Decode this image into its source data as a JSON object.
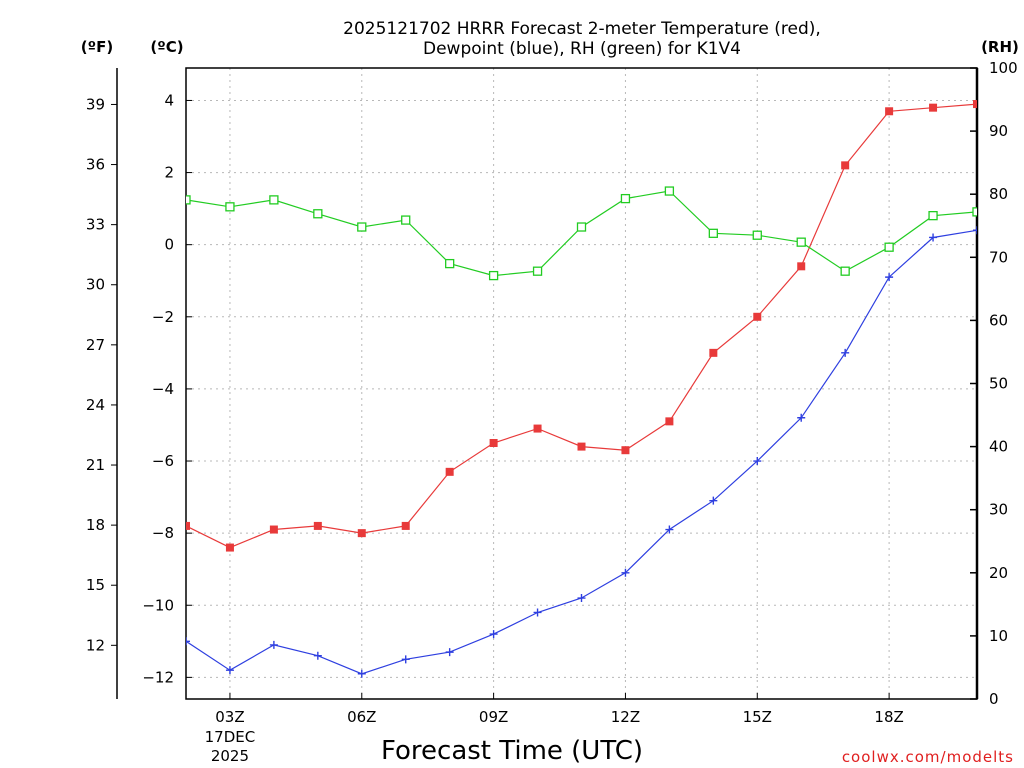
{
  "chart_data": {
    "type": "line",
    "title": [
      "2025121702 HRRR Forecast 2-meter Temperature (red),",
      "Dewpoint (blue), RH (green) for K1V4"
    ],
    "xlabel": "Forecast Time (UTC)",
    "credit": "coolwx.com/modelts",
    "units": {
      "fahrenheit": "(ºF)",
      "celsius": "(ºC)",
      "rh": "(RH)"
    },
    "x_hours": [
      2,
      3,
      4,
      5,
      6,
      7,
      8,
      9,
      10,
      11,
      12,
      13,
      14,
      15,
      16,
      17,
      18,
      19,
      20
    ],
    "x_ticks": [
      {
        "hour": 3,
        "label": "03Z",
        "date": [
          "17DEC",
          "2025"
        ]
      },
      {
        "hour": 6,
        "label": "06Z"
      },
      {
        "hour": 9,
        "label": "09Z"
      },
      {
        "hour": 12,
        "label": "12Z"
      },
      {
        "hour": 15,
        "label": "15Z"
      },
      {
        "hour": 18,
        "label": "18Z"
      }
    ],
    "y_celsius": {
      "range": [
        -12.6,
        4.9
      ],
      "ticks": [
        4,
        2,
        0,
        -2,
        -4,
        -6,
        -8,
        -10,
        -12
      ],
      "tick_labels": [
        "4",
        "2",
        "0",
        "−2",
        "−4",
        "−6",
        "−8",
        "−10",
        "−12"
      ]
    },
    "y_fahrenheit": {
      "ticks": [
        39,
        36,
        33,
        30,
        27,
        24,
        21,
        18,
        15,
        12
      ]
    },
    "y_rh": {
      "range": [
        0,
        100
      ],
      "ticks": [
        100,
        90,
        80,
        70,
        60,
        50,
        40,
        30,
        20,
        10,
        0
      ]
    },
    "grid": true,
    "series": [
      {
        "name": "Temperature",
        "color": "#e83a3a",
        "marker": "filled-square",
        "axis": "celsius",
        "values": [
          -7.8,
          -8.4,
          -7.9,
          -7.8,
          -8.0,
          -7.8,
          -6.3,
          -5.5,
          -5.1,
          -5.6,
          -5.7,
          -4.9,
          -3.0,
          -2.0,
          -0.6,
          2.2,
          3.7,
          3.8,
          3.9
        ]
      },
      {
        "name": "Dewpoint",
        "color": "#2e3fe0",
        "marker": "plus",
        "axis": "celsius",
        "values": [
          -11.0,
          -11.8,
          -11.1,
          -11.4,
          -11.9,
          -11.5,
          -11.3,
          -10.8,
          -10.2,
          -9.8,
          -9.1,
          -7.9,
          -7.1,
          -6.0,
          -4.8,
          -3.0,
          -0.9,
          0.2,
          0.4
        ]
      },
      {
        "name": "RH",
        "color": "#22cc22",
        "marker": "open-square",
        "axis": "rh",
        "values": [
          79.1,
          78.0,
          79.1,
          76.9,
          74.8,
          75.9,
          69.0,
          67.1,
          67.8,
          74.8,
          79.3,
          80.5,
          73.8,
          73.5,
          72.4,
          67.8,
          71.6,
          76.6,
          77.2
        ]
      }
    ]
  }
}
